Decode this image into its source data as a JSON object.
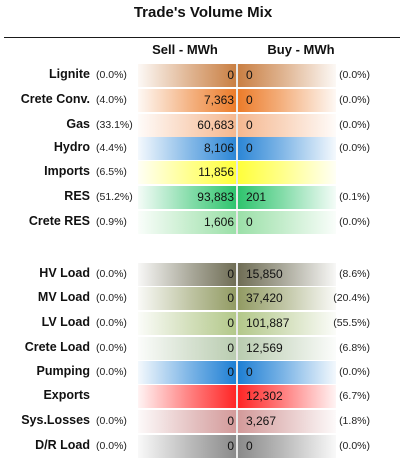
{
  "title": "Trade's Volume Mix",
  "headers": {
    "sell": "Sell - MWh",
    "buy": "Buy - MWh"
  },
  "chart_data": {
    "type": "table",
    "title": "Trade's Volume Mix",
    "columns": [
      "Sell - MWh",
      "Buy - MWh"
    ],
    "rows": [
      {
        "label": "Lignite",
        "sell_pct": "(0.0%)",
        "sell": "0",
        "buy": "0",
        "buy_pct": "(0.0%)",
        "color": "#c97f43"
      },
      {
        "label": "Crete Conv.",
        "sell_pct": "(4.0%)",
        "sell": "7,363",
        "buy": "0",
        "buy_pct": "(0.0%)",
        "color": "#ec7c2a"
      },
      {
        "label": "Gas",
        "sell_pct": "(33.1%)",
        "sell": "60,683",
        "buy": "0",
        "buy_pct": "(0.0%)",
        "color": "#f5b890"
      },
      {
        "label": "Hydro",
        "sell_pct": "(4.4%)",
        "sell": "8,106",
        "buy": "0",
        "buy_pct": "(0.0%)",
        "color": "#2c86d6"
      },
      {
        "label": "Imports",
        "sell_pct": "(6.5%)",
        "sell": "11,856",
        "buy": "",
        "buy_pct": "",
        "color": "#ffff3b"
      },
      {
        "label": "RES",
        "sell_pct": "(51.2%)",
        "sell": "93,883",
        "buy": "201",
        "buy_pct": "(0.1%)",
        "color": "#2fc46e"
      },
      {
        "label": "Crete RES",
        "sell_pct": "(0.9%)",
        "sell": "1,606",
        "buy": "0",
        "buy_pct": "(0.0%)",
        "color": "#9be0a8"
      },
      {
        "label": "HV Load",
        "sell_pct": "(0.0%)",
        "sell": "0",
        "buy": "15,850",
        "buy_pct": "(8.6%)",
        "color": "#6f6d55"
      },
      {
        "label": "MV Load",
        "sell_pct": "(0.0%)",
        "sell": "0",
        "buy": "37,420",
        "buy_pct": "(20.4%)",
        "color": "#929b63"
      },
      {
        "label": "LV Load",
        "sell_pct": "(0.0%)",
        "sell": "0",
        "buy": "101,887",
        "buy_pct": "(55.5%)",
        "color": "#b3c88a"
      },
      {
        "label": "Crete Load",
        "sell_pct": "(0.0%)",
        "sell": "0",
        "buy": "12,569",
        "buy_pct": "(6.8%)",
        "color": "#b9ccb0"
      },
      {
        "label": "Pumping",
        "sell_pct": "(0.0%)",
        "sell": "0",
        "buy": "0",
        "buy_pct": "(0.0%)",
        "color": "#1e7fd4"
      },
      {
        "label": "Exports",
        "sell_pct": "",
        "sell": "",
        "buy": "12,302",
        "buy_pct": "(6.7%)",
        "color": "#ff2525"
      },
      {
        "label": "Sys.Losses",
        "sell_pct": "(0.0%)",
        "sell": "0",
        "buy": "3,267",
        "buy_pct": "(1.8%)",
        "color": "#d39a9a"
      },
      {
        "label": "D/R Load",
        "sell_pct": "(0.0%)",
        "sell": "0",
        "buy": "0",
        "buy_pct": "(0.0%)",
        "color": "#8a8a8a"
      }
    ]
  }
}
